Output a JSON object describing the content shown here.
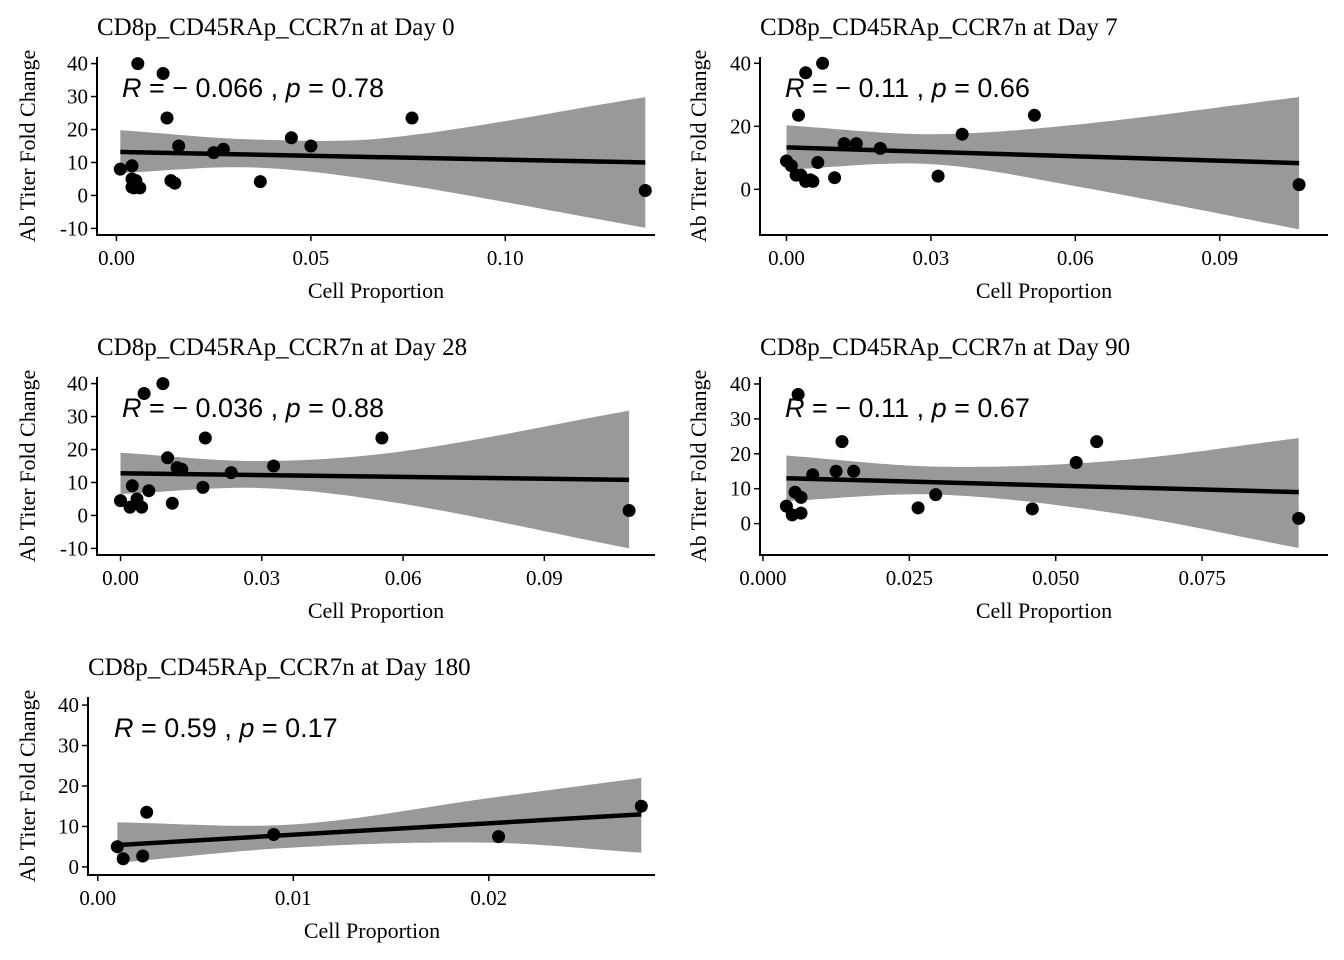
{
  "chart_data": [
    {
      "type": "scatter",
      "title": "CD8p_CD45RAp_CCR7n at Day 0",
      "xlabel": "Cell Proportion",
      "ylabel": "Ab Titer Fold Change",
      "annotation": {
        "r_label": "R",
        "r_text": " = − 0.066 , ",
        "p_label": "p",
        "p_text": " = 0.78"
      },
      "xlim": [
        -0.005,
        0.1385
      ],
      "ylim": [
        -12,
        42
      ],
      "xticks": [
        0.0,
        0.05,
        0.1
      ],
      "xtick_labels": [
        "0.00",
        "0.05",
        "0.10"
      ],
      "yticks": [
        -10,
        0,
        10,
        20,
        30,
        40
      ],
      "ytick_labels": [
        "-10",
        "0",
        "10",
        "20",
        "30",
        "40"
      ],
      "x": [
        0.001,
        0.004,
        0.004,
        0.004,
        0.0045,
        0.0055,
        0.006,
        0.012,
        0.013,
        0.014,
        0.015,
        0.016,
        0.025,
        0.0275,
        0.037,
        0.045,
        0.05,
        0.076,
        0.136,
        0.005
      ],
      "y": [
        8.0,
        2.5,
        9.0,
        5.0,
        2.3,
        40.0,
        2.3,
        37.0,
        23.5,
        4.5,
        3.7,
        15.0,
        13.0,
        14.0,
        4.2,
        17.5,
        15.0,
        23.5,
        1.5,
        4.5
      ],
      "fit": {
        "x": [
          0.001,
          0.136
        ],
        "y": [
          13.2,
          10.0
        ]
      },
      "band": {
        "x": [
          0.001,
          0.035,
          0.07,
          0.136
        ],
        "lower": [
          6.8,
          8.5,
          4.0,
          -9.8
        ],
        "upper": [
          19.8,
          17.0,
          17.5,
          29.8
        ]
      },
      "colors": {
        "point": "#000000",
        "line": "#000000",
        "band": "#999999"
      }
    },
    {
      "type": "scatter",
      "title": "CD8p_CD45RAp_CCR7n at Day 7",
      "xlabel": "Cell Proportion",
      "ylabel": "Ab Titer Fold Change",
      "annotation": {
        "r_label": "R",
        "r_text": " = − 0.11 , ",
        "p_label": "p",
        "p_text": " = 0.66"
      },
      "xlim": [
        -0.0055,
        0.1125
      ],
      "ylim": [
        -14.5,
        42
      ],
      "xticks": [
        0.0,
        0.03,
        0.06,
        0.09
      ],
      "xtick_labels": [
        "0.00",
        "0.03",
        "0.06",
        "0.09"
      ],
      "yticks": [
        0,
        20,
        40
      ],
      "ytick_labels": [
        "0",
        "20",
        "40"
      ],
      "x": [
        0.0,
        0.001,
        0.002,
        0.0025,
        0.003,
        0.004,
        0.004,
        0.005,
        0.0055,
        0.0065,
        0.0075,
        0.01,
        0.012,
        0.0145,
        0.0195,
        0.0315,
        0.0365,
        0.0515,
        0.1065
      ],
      "y": [
        9.0,
        7.5,
        4.5,
        23.5,
        4.5,
        37.0,
        2.5,
        3.0,
        2.5,
        8.5,
        40.0,
        3.7,
        14.5,
        14.5,
        13.0,
        4.2,
        17.5,
        23.5,
        1.5
      ],
      "fit": {
        "x": [
          0.0,
          0.1065
        ],
        "y": [
          13.3,
          8.3
        ]
      },
      "band": {
        "x": [
          0.0,
          0.03,
          0.06,
          0.1065
        ],
        "lower": [
          6.3,
          8.0,
          1.0,
          -12.7
        ],
        "upper": [
          20.3,
          17.5,
          20.5,
          29.3
        ]
      },
      "colors": {
        "point": "#000000",
        "line": "#000000",
        "band": "#999999"
      }
    },
    {
      "type": "scatter",
      "title": "CD8p_CD45RAp_CCR7n at Day 28",
      "xlabel": "Cell Proportion",
      "ylabel": "Ab Titer Fold Change",
      "annotation": {
        "r_label": "R",
        "r_text": " = − 0.036 , ",
        "p_label": "p",
        "p_text": " = 0.88"
      },
      "xlim": [
        -0.005,
        0.1135
      ],
      "ylim": [
        -12,
        42
      ],
      "xticks": [
        0.0,
        0.03,
        0.06,
        0.09
      ],
      "xtick_labels": [
        "0.00",
        "0.03",
        "0.06",
        "0.09"
      ],
      "yticks": [
        -10,
        0,
        10,
        20,
        30,
        40
      ],
      "ytick_labels": [
        "-10",
        "0",
        "10",
        "20",
        "30",
        "40"
      ],
      "x": [
        0.0,
        0.002,
        0.0025,
        0.0035,
        0.0045,
        0.005,
        0.006,
        0.009,
        0.01,
        0.011,
        0.012,
        0.013,
        0.0175,
        0.018,
        0.0235,
        0.0325,
        0.0555,
        0.108
      ],
      "y": [
        4.5,
        2.5,
        9.0,
        5.0,
        2.5,
        37.0,
        7.5,
        40.0,
        17.5,
        3.7,
        14.5,
        14.0,
        8.5,
        23.5,
        13.0,
        15.0,
        23.5,
        1.5
      ],
      "fit": {
        "x": [
          0.0,
          0.108
        ],
        "y": [
          12.8,
          10.8
        ]
      },
      "band": {
        "x": [
          0.0,
          0.03,
          0.06,
          0.108
        ],
        "lower": [
          6.5,
          8.3,
          3.5,
          -10.0
        ],
        "upper": [
          19.0,
          16.5,
          19.5,
          31.8
        ]
      },
      "colors": {
        "point": "#000000",
        "line": "#000000",
        "band": "#999999"
      }
    },
    {
      "type": "scatter",
      "title": "CD8p_CD45RAp_CCR7n at Day 90",
      "xlabel": "Cell Proportion",
      "ylabel": "Ab Titer Fold Change",
      "annotation": {
        "r_label": "R",
        "r_text": " = − 0.11 , ",
        "p_label": "p",
        "p_text": " = 0.67"
      },
      "xlim": [
        -0.0005,
        0.0965
      ],
      "ylim": [
        -9,
        42
      ],
      "xticks": [
        0.0,
        0.025,
        0.05,
        0.075
      ],
      "xtick_labels": [
        "0.000",
        "0.025",
        "0.050",
        "0.075"
      ],
      "yticks": [
        0,
        10,
        20,
        30,
        40
      ],
      "ytick_labels": [
        "0",
        "10",
        "20",
        "30",
        "40"
      ],
      "x": [
        0.004,
        0.005,
        0.0055,
        0.006,
        0.0065,
        0.0065,
        0.0085,
        0.0125,
        0.0135,
        0.0155,
        0.0265,
        0.0295,
        0.046,
        0.0535,
        0.057,
        0.0915
      ],
      "y": [
        5.0,
        2.5,
        9.0,
        37.0,
        7.5,
        3.0,
        14.0,
        15.0,
        23.5,
        15.0,
        4.5,
        8.3,
        4.2,
        17.5,
        23.5,
        1.5
      ],
      "fit": {
        "x": [
          0.004,
          0.0915
        ],
        "y": [
          13.0,
          9.0
        ]
      },
      "band": {
        "x": [
          0.004,
          0.03,
          0.06,
          0.0915
        ],
        "lower": [
          6.5,
          8.3,
          3.0,
          -7.0
        ],
        "upper": [
          19.5,
          16.3,
          18.0,
          24.5
        ]
      },
      "colors": {
        "point": "#000000",
        "line": "#000000",
        "band": "#999999"
      }
    },
    {
      "type": "scatter",
      "title": "CD8p_CD45RAp_CCR7n at Day 180",
      "xlabel": "Cell Proportion",
      "ylabel": "Ab Titer Fold Change",
      "annotation": {
        "r_label": "R",
        "r_text": " = 0.59 , ",
        "p_label": "p",
        "p_text": " = 0.17"
      },
      "xlim": [
        -0.0005,
        0.0285
      ],
      "ylim": [
        -2,
        42
      ],
      "xticks": [
        0.0,
        0.01,
        0.02
      ],
      "xtick_labels": [
        "0.00",
        "0.01",
        "0.02"
      ],
      "yticks": [
        0,
        10,
        20,
        30,
        40
      ],
      "ytick_labels": [
        "0",
        "10",
        "20",
        "30",
        "40"
      ],
      "x": [
        0.001,
        0.0013,
        0.0023,
        0.0025,
        0.009,
        0.0205,
        0.0278
      ],
      "y": [
        5.0,
        2.0,
        2.7,
        13.5,
        8.0,
        7.5,
        15.0
      ],
      "fit": {
        "x": [
          0.001,
          0.0278
        ],
        "y": [
          5.4,
          13.0
        ]
      },
      "band": {
        "x": [
          0.001,
          0.01,
          0.02,
          0.0278
        ],
        "lower": [
          1.0,
          4.8,
          6.0,
          3.5
        ],
        "upper": [
          11.0,
          10.5,
          17.0,
          22.0
        ]
      },
      "colors": {
        "point": "#000000",
        "line": "#000000",
        "band": "#999999"
      }
    }
  ]
}
